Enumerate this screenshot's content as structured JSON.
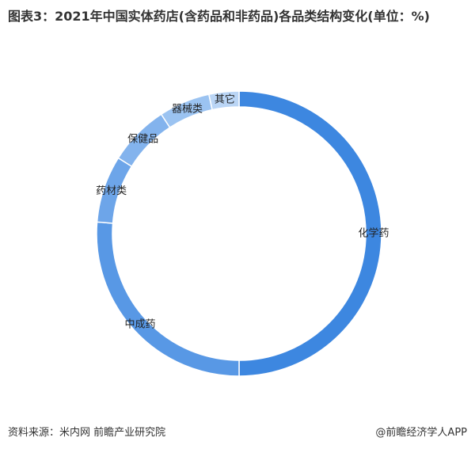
{
  "chart_data": {
    "type": "donut",
    "title": "图表3：2021年中国实体药店(含药品和非药品)各品类结构变化(单位：%)",
    "categories": [
      "化学药",
      "中成药",
      "药材类",
      "保健品",
      "器械类",
      "其它"
    ],
    "values": [
      50,
      26.3,
      7.6,
      6.9,
      5.8,
      3.4
    ],
    "colors": [
      "#3d87e0",
      "#5898e5",
      "#6da5e9",
      "#83b3ed",
      "#9bc3f1",
      "#bad5f5"
    ]
  },
  "footer": {
    "source": "资料来源：米内网 前瞻产业研究院",
    "brand": "@前瞻经济学人APP"
  }
}
